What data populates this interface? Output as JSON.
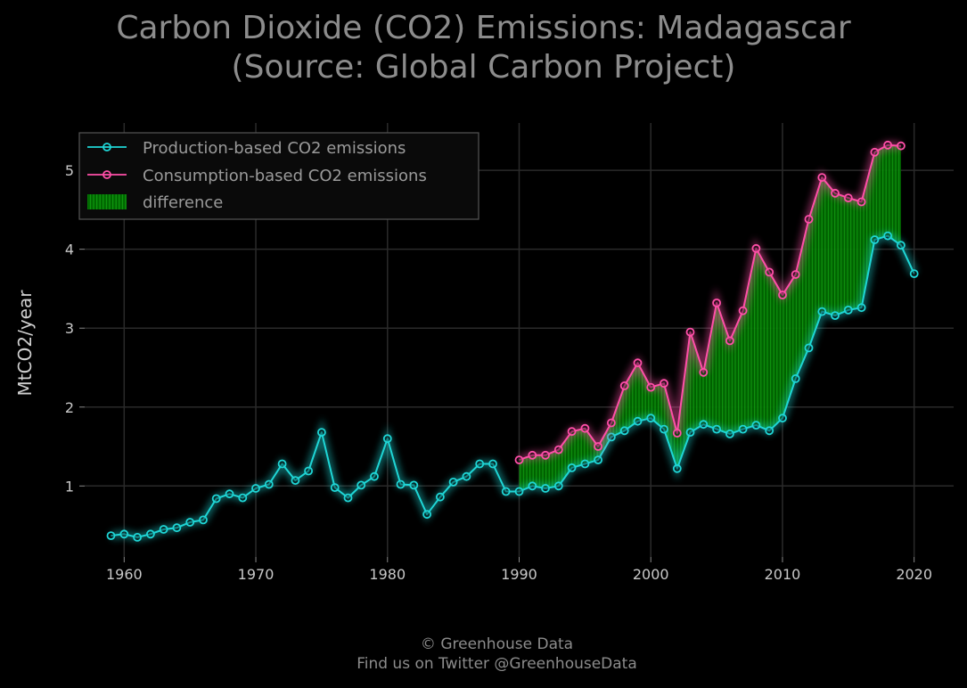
{
  "header": {
    "title_line1": "Carbon Dioxide (CO2) Emissions: Madagascar",
    "title_line2": "(Source: Global Carbon Project)"
  },
  "footer": {
    "line1": "© Greenhouse Data",
    "line2": "Find us on Twitter @GreenhouseData"
  },
  "colors": {
    "production": "#1fd6d6",
    "consumption": "#ff4fa8",
    "difference": "#0a8a0a",
    "grid": "#2a2a2a",
    "background": "#000000"
  },
  "chart_data": {
    "type": "line",
    "title": "Carbon Dioxide (CO2) Emissions: Madagascar (Source: Global Carbon Project)",
    "xlabel": "",
    "ylabel": "MtCO2/year",
    "xlim": [
      1957,
      2023
    ],
    "ylim": [
      0.1,
      5.6
    ],
    "xticks": [
      1960,
      1970,
      1980,
      1990,
      2000,
      2010,
      2020
    ],
    "yticks": [
      1,
      2,
      3,
      4,
      5
    ],
    "grid": true,
    "legend": "top-left",
    "series": [
      {
        "name": "Production-based CO2 emissions",
        "x": [
          1959,
          1960,
          1961,
          1962,
          1963,
          1964,
          1965,
          1966,
          1967,
          1968,
          1969,
          1970,
          1971,
          1972,
          1973,
          1974,
          1975,
          1976,
          1977,
          1978,
          1979,
          1980,
          1981,
          1982,
          1983,
          1984,
          1985,
          1986,
          1987,
          1988,
          1989,
          1990,
          1991,
          1992,
          1993,
          1994,
          1995,
          1996,
          1997,
          1998,
          1999,
          2000,
          2001,
          2002,
          2003,
          2004,
          2005,
          2006,
          2007,
          2008,
          2009,
          2010,
          2011,
          2012,
          2013,
          2014,
          2015,
          2016,
          2017,
          2018,
          2019,
          2020
        ],
        "values": [
          0.37,
          0.39,
          0.35,
          0.39,
          0.45,
          0.47,
          0.54,
          0.57,
          0.84,
          0.9,
          0.85,
          0.97,
          1.02,
          1.28,
          1.07,
          1.19,
          1.68,
          0.98,
          0.85,
          1.01,
          1.12,
          1.6,
          1.02,
          1.01,
          0.64,
          0.86,
          1.05,
          1.12,
          1.28,
          1.28,
          0.93,
          0.93,
          1.0,
          0.97,
          1.0,
          1.23,
          1.28,
          1.33,
          1.62,
          1.7,
          1.82,
          1.86,
          1.72,
          1.22,
          1.68,
          1.78,
          1.72,
          1.66,
          1.72,
          1.77,
          1.7,
          1.86,
          2.36,
          2.75,
          3.21,
          3.16,
          3.23,
          3.26,
          4.12,
          4.17,
          4.05,
          3.69
        ]
      },
      {
        "name": "Consumption-based CO2 emissions",
        "x": [
          1990,
          1991,
          1992,
          1993,
          1994,
          1995,
          1996,
          1997,
          1998,
          1999,
          2000,
          2001,
          2002,
          2003,
          2004,
          2005,
          2006,
          2007,
          2008,
          2009,
          2010,
          2011,
          2012,
          2013,
          2014,
          2015,
          2016,
          2017,
          2018,
          2019
        ],
        "values": [
          1.33,
          1.39,
          1.39,
          1.46,
          1.69,
          1.73,
          1.5,
          1.8,
          2.27,
          2.56,
          2.25,
          2.3,
          1.67,
          2.95,
          2.44,
          3.32,
          2.84,
          3.22,
          4.01,
          3.71,
          3.42,
          3.68,
          4.38,
          4.91,
          4.71,
          4.65,
          4.6,
          5.23,
          5.32,
          5.31
        ]
      }
    ],
    "fill_between": {
      "name": "difference",
      "from": 1990,
      "to": 2019
    }
  }
}
